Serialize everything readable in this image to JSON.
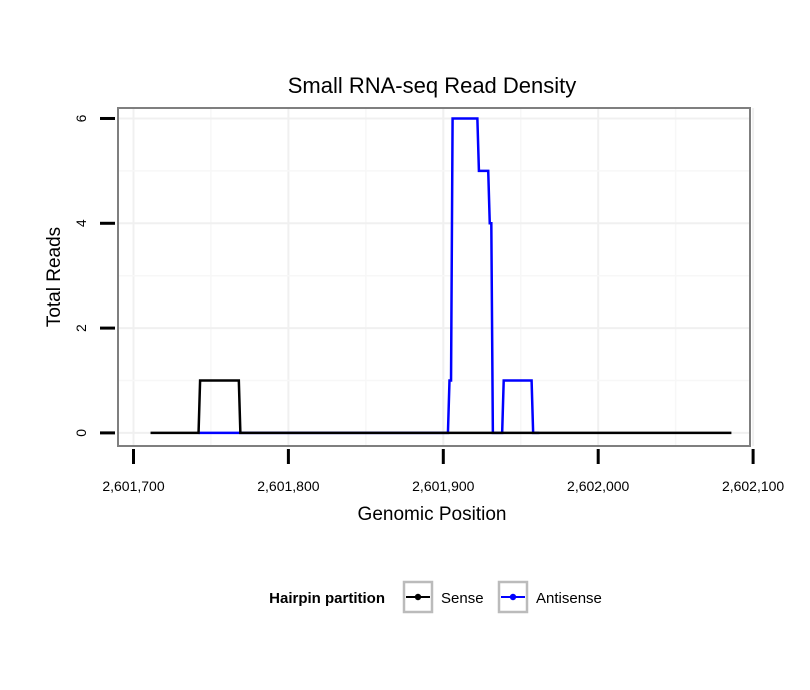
{
  "chart_data": {
    "type": "line",
    "title": "Small RNA-seq Read Density",
    "xlabel": "Genomic Position",
    "ylabel": "Total Reads",
    "xlim": [
      2601690,
      2602098
    ],
    "ylim": [
      -0.25,
      6.2
    ],
    "grid": true,
    "x_ticks": [
      2601700,
      2601800,
      2601900,
      2602000,
      2602100
    ],
    "x_tick_labels": [
      "2,601,700",
      "2,601,800",
      "2,601,900",
      "2,602,000",
      "2,602,100"
    ],
    "y_ticks": [
      0,
      2,
      4,
      6
    ],
    "y_tick_labels": [
      "0",
      "2",
      "4",
      "6"
    ],
    "legend": {
      "title": "Hairpin partition",
      "position": "bottom",
      "entries": [
        "Sense",
        "Antisense"
      ]
    },
    "series": [
      {
        "name": "Sense",
        "color": "#000000",
        "x": [
          2601711,
          2601742,
          2601743,
          2601768,
          2601769,
          2601906,
          2602086
        ],
        "y": [
          0,
          0,
          1,
          1,
          0,
          0,
          0
        ]
      },
      {
        "name": "Antisense",
        "color": "#0000ff",
        "x": [
          2601742,
          2601768,
          2601903,
          2601904,
          2601905,
          2601906,
          2601922,
          2601923,
          2601929,
          2601930,
          2601931,
          2601932,
          2601938,
          2601939,
          2601957,
          2601958,
          2601962
        ],
        "y": [
          0,
          0,
          0,
          1,
          1,
          6,
          6,
          5,
          5,
          4,
          4,
          0,
          0,
          1,
          1,
          0,
          0
        ]
      }
    ]
  }
}
